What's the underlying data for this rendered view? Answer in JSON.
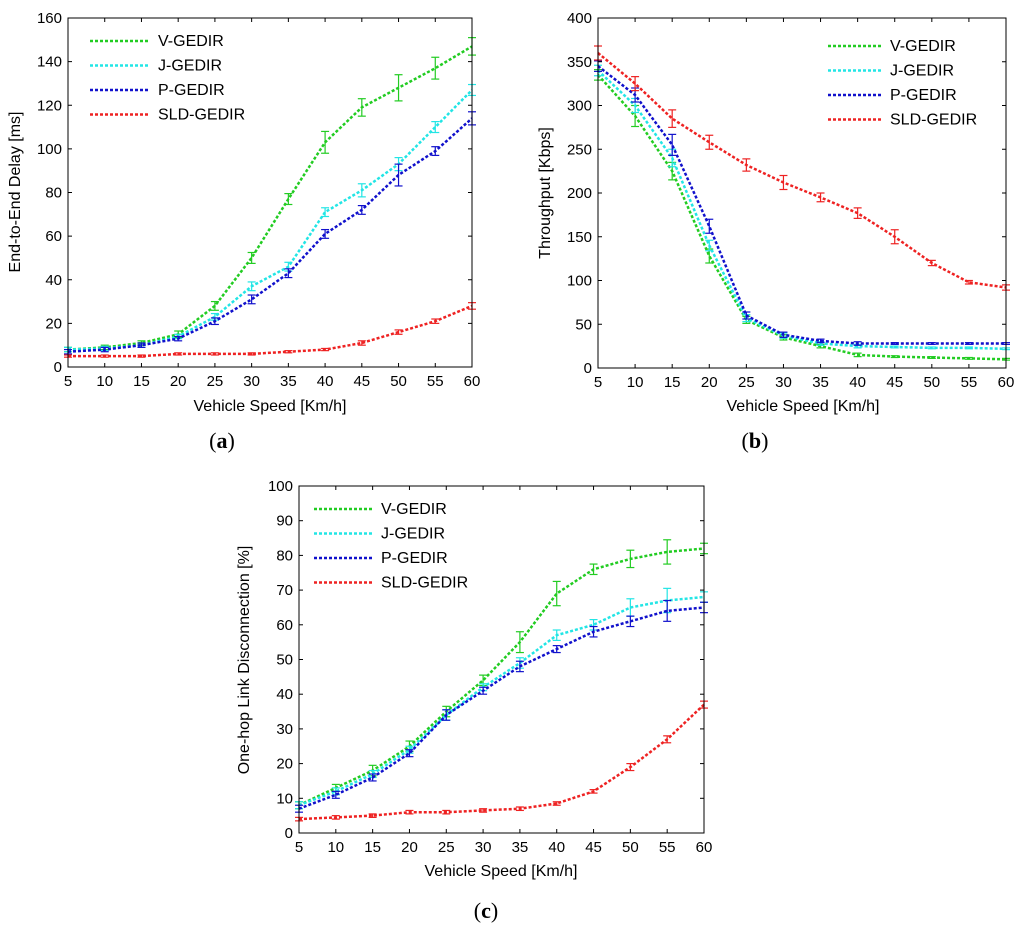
{
  "chart_data": [
    {
      "type": "line",
      "caption_open": "(",
      "caption_letter": "a",
      "caption_close": ")",
      "title": "",
      "xlabel": "Vehicle Speed [Km/h]",
      "ylabel": "End-to-End Delay [ms]",
      "x": [
        5,
        10,
        15,
        20,
        25,
        30,
        35,
        40,
        45,
        50,
        55,
        60
      ],
      "xlim": [
        5,
        60
      ],
      "ylim": [
        0,
        160
      ],
      "xticks": [
        5,
        10,
        15,
        20,
        25,
        30,
        35,
        40,
        45,
        50,
        55,
        60
      ],
      "yticks": [
        0,
        20,
        40,
        60,
        80,
        100,
        120,
        140,
        160
      ],
      "grid": false,
      "legend_position": "top-left",
      "series": [
        {
          "name": "V-GEDIR",
          "color": "#22cc22",
          "values": [
            8,
            9,
            11,
            15,
            28,
            50,
            77,
            103,
            119,
            128,
            137,
            147
          ],
          "errors": [
            1,
            1,
            1,
            1.5,
            2,
            2.5,
            2.5,
            5,
            4,
            6,
            5,
            4
          ]
        },
        {
          "name": "J-GEDIR",
          "color": "#22e5e5",
          "values": [
            8,
            8.5,
            10,
            14,
            23,
            37,
            46,
            71,
            81,
            93,
            110,
            127
          ],
          "errors": [
            1,
            1,
            1,
            1,
            1.5,
            2,
            2,
            2,
            3,
            3,
            2.5,
            2.5
          ]
        },
        {
          "name": "P-GEDIR",
          "color": "#1111cc",
          "values": [
            7,
            8,
            10,
            13,
            21,
            31,
            43,
            61,
            72,
            88,
            99,
            114
          ],
          "errors": [
            1,
            1,
            1,
            1,
            1.5,
            2,
            2,
            2,
            2,
            5,
            2,
            3
          ]
        },
        {
          "name": "SLD-GEDIR",
          "color": "#ee2222",
          "values": [
            5,
            5,
            5,
            6,
            6,
            6,
            7,
            8,
            11,
            16,
            21,
            28
          ],
          "errors": [
            0.5,
            0.5,
            0.5,
            0.5,
            0.5,
            0.5,
            0.5,
            0.5,
            1,
            1,
            1,
            1.5
          ]
        }
      ]
    },
    {
      "type": "line",
      "caption_open": "(",
      "caption_letter": "b",
      "caption_close": ")",
      "title": "",
      "xlabel": "Vehicle Speed [Km/h]",
      "ylabel": "Throughput [Kbps]",
      "x": [
        5,
        10,
        15,
        20,
        25,
        30,
        35,
        40,
        45,
        50,
        55,
        60
      ],
      "xlim": [
        5,
        60
      ],
      "ylim": [
        0,
        400
      ],
      "xticks": [
        5,
        10,
        15,
        20,
        25,
        30,
        35,
        40,
        45,
        50,
        55,
        60
      ],
      "yticks": [
        0,
        50,
        100,
        150,
        200,
        250,
        300,
        350,
        400
      ],
      "grid": false,
      "legend_position": "top-right",
      "series": [
        {
          "name": "V-GEDIR",
          "color": "#22cc22",
          "values": [
            335,
            288,
            225,
            128,
            55,
            35,
            25,
            15,
            13,
            12,
            11,
            10
          ],
          "errors": [
            6,
            12,
            10,
            8,
            4,
            3,
            2,
            2,
            1,
            1,
            1,
            1
          ]
        },
        {
          "name": "J-GEDIR",
          "color": "#22e5e5",
          "values": [
            340,
            300,
            240,
            140,
            57,
            37,
            28,
            25,
            24,
            23,
            23,
            22
          ],
          "errors": [
            6,
            8,
            10,
            6,
            4,
            3,
            2,
            2,
            1,
            1,
            1,
            1
          ]
        },
        {
          "name": "P-GEDIR",
          "color": "#1111cc",
          "values": [
            345,
            312,
            255,
            162,
            60,
            38,
            31,
            28,
            28,
            28,
            28,
            28
          ],
          "errors": [
            6,
            8,
            12,
            8,
            4,
            3,
            2,
            2,
            1,
            1,
            1,
            1
          ]
        },
        {
          "name": "SLD-GEDIR",
          "color": "#ee2222",
          "values": [
            360,
            325,
            285,
            258,
            232,
            212,
            195,
            177,
            150,
            120,
            98,
            92
          ],
          "errors": [
            8,
            8,
            10,
            8,
            7,
            8,
            5,
            6,
            8,
            3,
            2,
            3
          ]
        }
      ]
    },
    {
      "type": "line",
      "caption_open": "(",
      "caption_letter": "c",
      "caption_close": ")",
      "title": "",
      "xlabel": "Vehicle Speed [Km/h]",
      "ylabel": "One-hop Link Disconnection [%]",
      "x": [
        5,
        10,
        15,
        20,
        25,
        30,
        35,
        40,
        45,
        50,
        55,
        60
      ],
      "xlim": [
        5,
        60
      ],
      "ylim": [
        0,
        100
      ],
      "xticks": [
        5,
        10,
        15,
        20,
        25,
        30,
        35,
        40,
        45,
        50,
        55,
        60
      ],
      "yticks": [
        0,
        10,
        20,
        30,
        40,
        50,
        60,
        70,
        80,
        90,
        100
      ],
      "grid": false,
      "legend_position": "top-left",
      "series": [
        {
          "name": "V-GEDIR",
          "color": "#22cc22",
          "values": [
            8,
            13,
            18,
            25,
            35,
            44,
            55,
            69,
            76,
            79,
            81,
            82
          ],
          "errors": [
            1,
            1,
            1.5,
            1.5,
            1.5,
            1.5,
            3,
            3.5,
            1.5,
            2.5,
            3.5,
            1.5
          ]
        },
        {
          "name": "J-GEDIR",
          "color": "#22e5e5",
          "values": [
            8,
            12,
            17,
            24,
            34,
            42,
            49,
            57,
            60,
            65,
            67,
            68
          ],
          "errors": [
            1,
            1,
            1,
            1,
            1.5,
            1,
            1.5,
            1.5,
            1.5,
            2.5,
            3.5,
            1.5
          ]
        },
        {
          "name": "P-GEDIR",
          "color": "#1111cc",
          "values": [
            7,
            11,
            16,
            23,
            34,
            41,
            48,
            53,
            58,
            61,
            64,
            65
          ],
          "errors": [
            1,
            1,
            1,
            1,
            1.5,
            1,
            1.5,
            1,
            1.5,
            1.5,
            3,
            1.5
          ]
        },
        {
          "name": "SLD-GEDIR",
          "color": "#ee2222",
          "values": [
            4,
            4.5,
            5,
            6,
            6,
            6.5,
            7,
            8.5,
            12,
            19,
            27,
            37
          ],
          "errors": [
            0.5,
            0.5,
            0.5,
            0.5,
            0.5,
            0.5,
            0.5,
            0.5,
            0.5,
            1,
            1,
            1
          ]
        }
      ]
    }
  ]
}
